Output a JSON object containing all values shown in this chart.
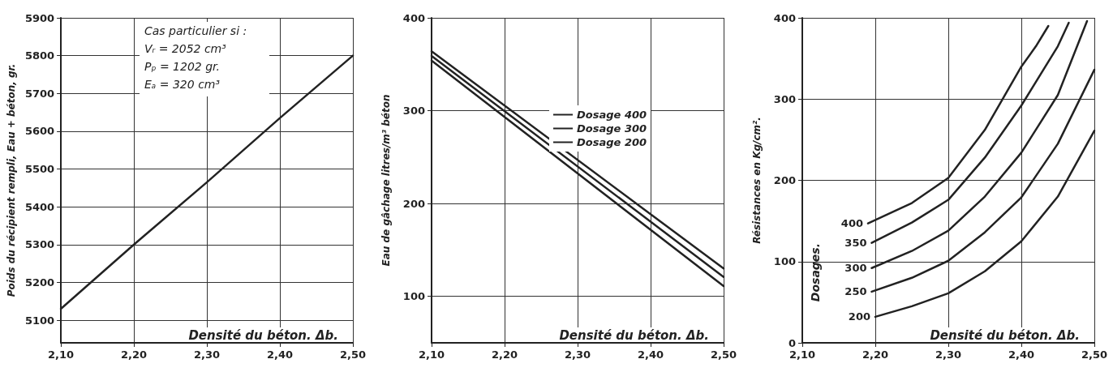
{
  "chart_data": [
    {
      "type": "line",
      "xlabel": "Densité du béton. Δb.",
      "ylabel": "Poids du récipient rempli, Eau + béton, gr.",
      "annotations": [
        "Cas particulier si :",
        "Vᵣ = 2052 cm³",
        "Pₚ = 1202 gr.",
        "Eₐ = 320 cm³"
      ],
      "x": [
        2.1,
        2.2,
        2.3,
        2.4,
        2.5
      ],
      "series": [
        {
          "color": "#222222",
          "values": [
            5130,
            5300,
            5465,
            5635,
            5800
          ]
        }
      ],
      "xlim": [
        2.1,
        2.5
      ],
      "xticks": [
        {
          "value": 2.1,
          "label": "2,10"
        },
        {
          "value": 2.2,
          "label": "2,20"
        },
        {
          "value": 2.3,
          "label": "2,30"
        },
        {
          "value": 2.4,
          "label": "2,40"
        },
        {
          "value": 2.5,
          "label": "2,50"
        }
      ],
      "ylim": [
        5040,
        5900
      ],
      "yticks": [
        5100,
        5200,
        5300,
        5400,
        5500,
        5600,
        5700,
        5800,
        5900
      ],
      "grid": true,
      "legend": false,
      "marker": "none",
      "line_style": "solid"
    },
    {
      "type": "line",
      "xlabel": "Densité du béton. Δb.",
      "ylabel": "Eau de gâchage litres/m³ béton",
      "x": [
        2.1,
        2.5
      ],
      "series": [
        {
          "name": "Dosage 400",
          "color": "#222222",
          "values": [
            364,
            130
          ]
        },
        {
          "name": "Dosage 300",
          "color": "#222222",
          "values": [
            359,
            121
          ]
        },
        {
          "name": "Dosage 200",
          "color": "#222222",
          "values": [
            354,
            111
          ]
        }
      ],
      "xlim": [
        2.1,
        2.5
      ],
      "xticks": [
        {
          "value": 2.1,
          "label": "2,10"
        },
        {
          "value": 2.2,
          "label": "2,20"
        },
        {
          "value": 2.3,
          "label": "2,30"
        },
        {
          "value": 2.4,
          "label": "2,40"
        },
        {
          "value": 2.5,
          "label": "2,50"
        }
      ],
      "ylim": [
        50,
        400
      ],
      "yticks": [
        100,
        200,
        300,
        400
      ],
      "grid": true,
      "legend": "top",
      "marker": "none",
      "line_style": "solid"
    },
    {
      "type": "line",
      "xlabel": "Densité du béton. Δb.",
      "ylabel": "Résistances en Kg/cm².",
      "legend_title": "Dosages.",
      "series": [
        {
          "name": "400",
          "color": "#222222",
          "x": [
            2.19,
            2.25,
            2.3,
            2.35,
            2.4,
            2.42,
            2.437
          ],
          "values": [
            147,
            172,
            203,
            262,
            340,
            365,
            390
          ]
        },
        {
          "name": "350",
          "color": "#222222",
          "x": [
            2.195,
            2.25,
            2.3,
            2.35,
            2.4,
            2.45,
            2.465
          ],
          "values": [
            123,
            148,
            176,
            228,
            292,
            365,
            394
          ]
        },
        {
          "name": "300",
          "color": "#222222",
          "x": [
            2.195,
            2.25,
            2.3,
            2.35,
            2.4,
            2.45,
            2.49
          ],
          "values": [
            92,
            113,
            138,
            180,
            234,
            305,
            396
          ]
        },
        {
          "name": "250",
          "color": "#222222",
          "x": [
            2.195,
            2.25,
            2.3,
            2.35,
            2.4,
            2.45,
            2.5
          ],
          "values": [
            63,
            80,
            101,
            136,
            179,
            245,
            336
          ]
        },
        {
          "name": "200",
          "color": "#222222",
          "x": [
            2.2,
            2.25,
            2.3,
            2.35,
            2.4,
            2.45,
            2.5
          ],
          "values": [
            32,
            45,
            61,
            88,
            125,
            180,
            261
          ]
        }
      ],
      "xlim": [
        2.1,
        2.5
      ],
      "xticks": [
        {
          "value": 2.1,
          "label": "2,10"
        },
        {
          "value": 2.2,
          "label": "2,20"
        },
        {
          "value": 2.3,
          "label": "2,30"
        },
        {
          "value": 2.4,
          "label": "2,40"
        },
        {
          "value": 2.5,
          "label": "2,50"
        }
      ],
      "ylim": [
        0,
        400
      ],
      "yticks": [
        0,
        100,
        200,
        300,
        400
      ],
      "grid": true,
      "legend": false,
      "marker": "none",
      "line_style": "solid"
    }
  ]
}
